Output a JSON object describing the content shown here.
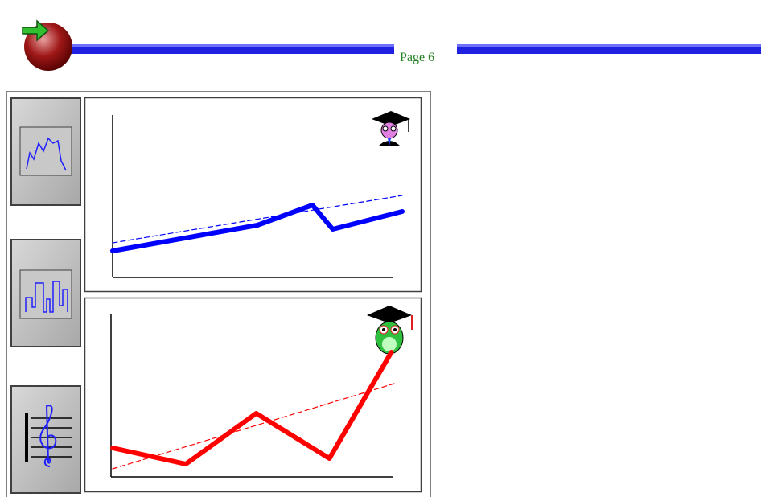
{
  "header": {
    "title": "Page 6"
  },
  "chart_data": [
    {
      "type": "line",
      "xlim": [
        0,
        100
      ],
      "ylim": [
        0,
        100
      ],
      "series": [
        {
          "color": "#0000ff",
          "width": 6,
          "dash": false,
          "x": [
            0,
            50,
            69,
            76,
            100
          ],
          "values": [
            16.5,
            32.5,
            45,
            30,
            41
          ]
        },
        {
          "color": "#0000ff",
          "width": 1.2,
          "dash": true,
          "x": [
            0,
            100
          ],
          "values": [
            21.5,
            51
          ]
        }
      ]
    },
    {
      "type": "line",
      "xlim": [
        0,
        100
      ],
      "ylim": [
        0,
        100
      ],
      "series": [
        {
          "color": "#ff0000",
          "width": 6,
          "dash": false,
          "x": [
            0,
            26,
            51,
            77,
            99
          ],
          "values": [
            18,
            8,
            39.5,
            11.5,
            77.5
          ]
        },
        {
          "color": "#ff0000",
          "width": 1.2,
          "dash": true,
          "x": [
            0,
            100
          ],
          "values": [
            5,
            58
          ]
        }
      ]
    }
  ]
}
